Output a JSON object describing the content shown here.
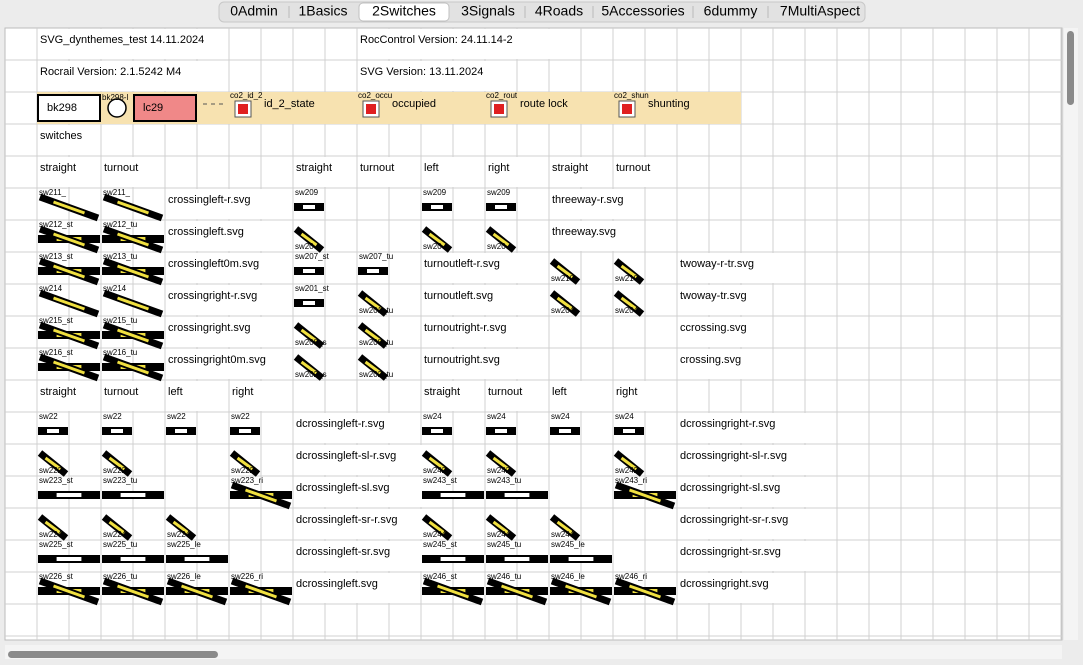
{
  "tabs": [
    "0Admin",
    "1Basics",
    "2Switches",
    "3Signals",
    "4Roads",
    "5Accessories",
    "6dummy",
    "7MultiAspect"
  ],
  "selected_tab": 2,
  "texts": [
    "SVG_dynthemes_test 14.11.2024",
    "RocControl Version: 24.11.14-2",
    "Rocrail Version: 2.1.5242 M4",
    "SVG Version: 13.11.2024",
    "switches",
    "straight",
    "turnout",
    "straight",
    "turnout",
    "left",
    "right",
    "straight",
    "turnout",
    "crossingleft-r.svg",
    "threeway-r.svg",
    "crossingleft.svg",
    "threeway.svg",
    "crossingleft0m.svg",
    "turnoutleft-r.svg",
    "twoway-r-tr.svg",
    "crossingright-r.svg",
    "turnoutleft.svg",
    "twoway-tr.svg",
    "crossingright.svg",
    "turnoutright-r.svg",
    "ccrossing.svg",
    "crossingright0m.svg",
    "turnoutright.svg",
    "crossing.svg",
    "straight",
    "turnout",
    "left",
    "right",
    "straight",
    "turnout",
    "left",
    "right",
    "dcrossingleft-r.svg",
    "dcrossingright-r.svg",
    "dcrossingleft-sl-r.svg",
    "dcrossingright-sl-r.svg",
    "dcrossingleft-sl.svg",
    "dcrossingright-sl.svg",
    "dcrossingleft-sr-r.svg",
    "dcrossingright-sr-r.svg",
    "dcrossingleft-sr.svg",
    "dcrossingright-sr.svg",
    "dcrossingleft.svg",
    "dcrossingright.svg"
  ],
  "block_row": {
    "block": "bk298",
    "signal_label": "bk298-l",
    "crossing": "lc29",
    "outputs": [
      {
        "label": "co2_id_2",
        "state": "id_2_state"
      },
      {
        "label": "co2_occu",
        "state": "occupied"
      },
      {
        "label": "co2_rout",
        "state": "route lock"
      },
      {
        "label": "co2_shun",
        "state": "shunting"
      }
    ]
  },
  "icons": [
    "sw211_",
    "sw211_",
    "sw209",
    "sw209",
    "sw209",
    "sw212_st",
    "sw212_tu",
    "sw20",
    "sw20",
    "sw20",
    "sw213_st",
    "sw213_tu",
    "sw207_st",
    "sw207_tu",
    "sw210",
    "sw210",
    "sw214",
    "sw214",
    "sw201_st",
    "sw201_tu",
    "sw204",
    "sw204",
    "sw215_st",
    "sw215_tu",
    "sw208_s",
    "sw208_tu",
    "sw216_st",
    "sw216_tu",
    "sw202_s",
    "sw202_tu",
    "sw22",
    "sw22",
    "sw22",
    "sw22",
    "sw24",
    "sw24",
    "sw24",
    "sw24",
    "sw222",
    "sw222",
    "sw222",
    "sw242",
    "sw242",
    "sw242",
    "sw223_st",
    "sw223_tu",
    "sw223_ri",
    "sw243_st",
    "sw243_tu",
    "sw243_ri",
    "sw224",
    "sw224",
    "sw224",
    "sw244",
    "sw244",
    "sw244",
    "sw225_st",
    "sw225_tu",
    "sw225_le",
    "sw245_st",
    "sw245_tu",
    "sw245_le",
    "sw226_st",
    "sw226_tu",
    "sw226_le",
    "sw226_ri",
    "sw246_st",
    "sw246_tu",
    "sw246_le",
    "sw246_ri"
  ]
}
